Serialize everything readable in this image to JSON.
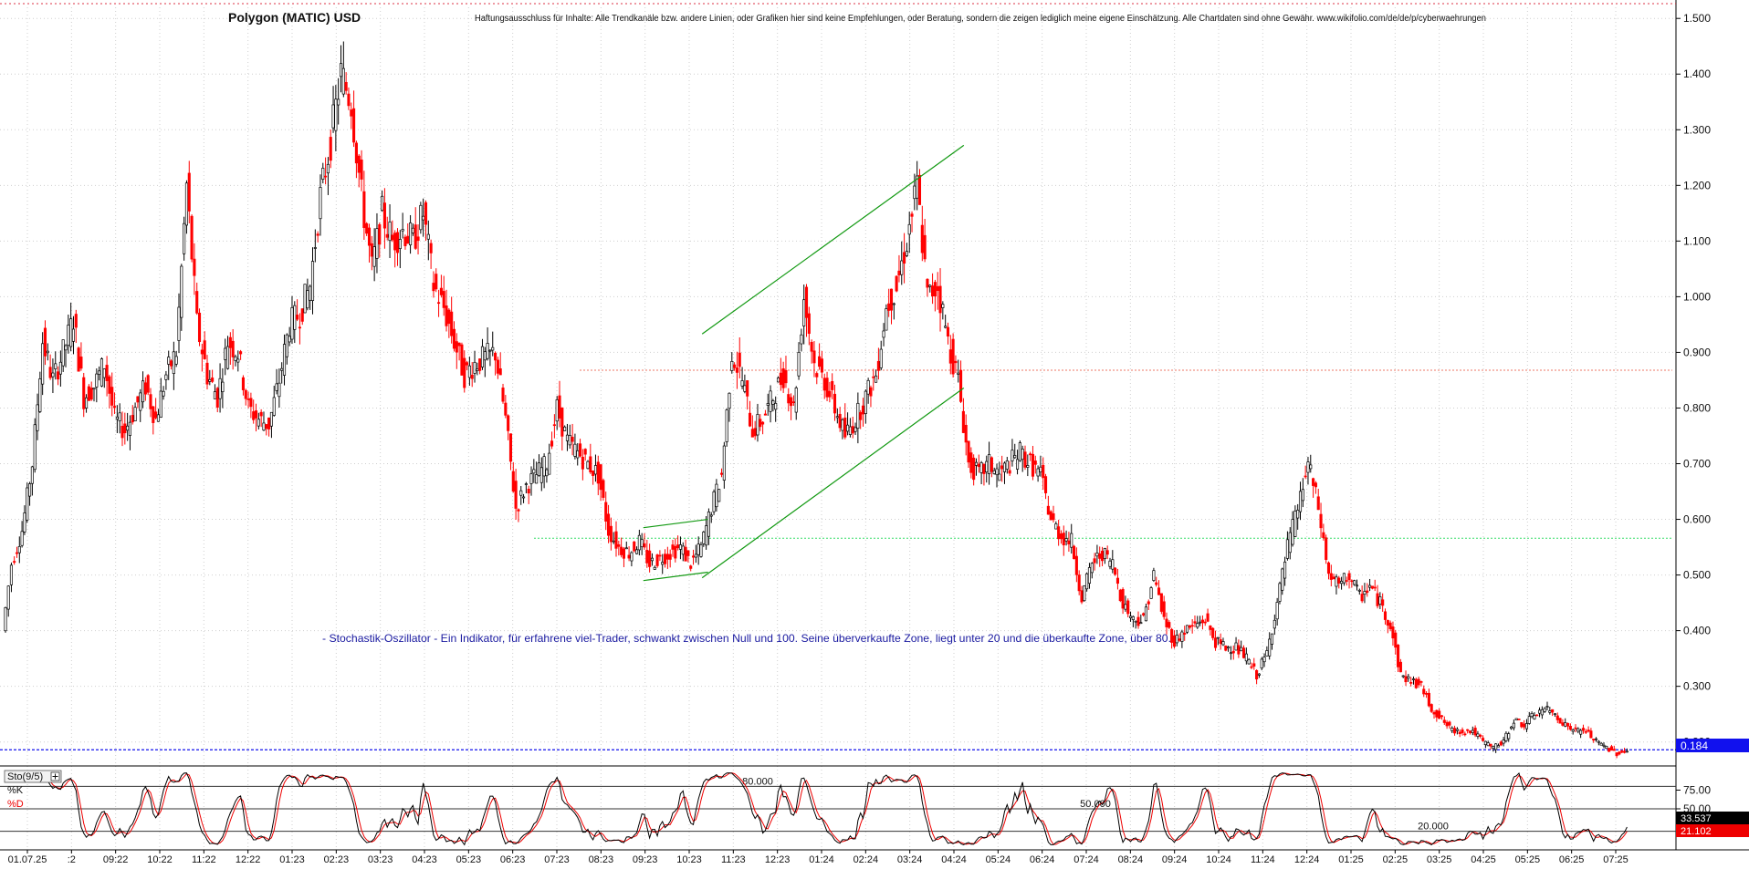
{
  "header": {
    "title": "Polygon (MATIC) USD",
    "disclaimer": "Haftungsausschluss für Inhalte: Alle Trendkanäle bzw. andere Linien, oder Grafiken hier sind keine Empfehlungen, oder Beratung, sondern die zeigen lediglich meine eigene Einschätzung. Alle Chartdaten sind ohne Gewähr. www.wikifolio.com/de/de/p/cyberwaehrungen"
  },
  "annotation": {
    "note": "- Stochastik-Oszillator - Ein Indikator, für erfahrene viel-Trader, schwankt zwischen Null und 100. Seine überverkaufte Zone, liegt unter 20 und die überkaufte Zone, über 80."
  },
  "colors": {
    "up": "#000000",
    "down": "#ff0000",
    "trendline": "#119911",
    "support_line": "#33dd66",
    "resistance_line": "#ee7766",
    "price_line": "#1111ee",
    "price_badge": "#1111ee",
    "k_badge": "#000000",
    "d_badge": "#ee0000"
  },
  "chart_data": [
    {
      "type": "candlestick",
      "x_range": [
        "2022-07-01",
        "2025-07-13"
      ],
      "ylim": [
        0.17,
        1.52
      ],
      "yticks": [
        "0.200",
        "0.300",
        "0.400",
        "0.500",
        "0.600",
        "0.700",
        "0.800",
        "0.900",
        "1.000",
        "1.100",
        "1.200",
        "1.300",
        "1.400",
        "1.500"
      ],
      "x_ticks": [
        "01.07.25",
        ":2",
        "09:22",
        "10:22",
        "11:22",
        "12:22",
        "01:23",
        "02:23",
        "03:23",
        "04:23",
        "05:23",
        "06:23",
        "07:23",
        "08:23",
        "09:23",
        "10:23",
        "11:23",
        "12:23",
        "01:24",
        "02:24",
        "03:24",
        "04:24",
        "05:24",
        "06:24",
        "07:24",
        "08:24",
        "09:24",
        "10:24",
        "11:24",
        "12:24",
        "01:25",
        "02:25",
        "03:25",
        "04:25",
        "05:25",
        "06:25",
        "07:25"
      ],
      "current_price": "0.184",
      "price_series": [
        {
          "date": "2022-07-01",
          "close": 0.4
        },
        {
          "date": "2022-07-07",
          "close": 0.52
        },
        {
          "date": "2022-07-14",
          "close": 0.58
        },
        {
          "date": "2022-07-21",
          "close": 0.7
        },
        {
          "date": "2022-07-28",
          "close": 0.92
        },
        {
          "date": "2022-08-04",
          "close": 0.85
        },
        {
          "date": "2022-08-11",
          "close": 0.9
        },
        {
          "date": "2022-08-18",
          "close": 0.96
        },
        {
          "date": "2022-08-25",
          "close": 0.82
        },
        {
          "date": "2022-09-01",
          "close": 0.84
        },
        {
          "date": "2022-09-08",
          "close": 0.88
        },
        {
          "date": "2022-09-15",
          "close": 0.78
        },
        {
          "date": "2022-09-22",
          "close": 0.76
        },
        {
          "date": "2022-09-29",
          "close": 0.8
        },
        {
          "date": "2022-10-06",
          "close": 0.84
        },
        {
          "date": "2022-10-13",
          "close": 0.78
        },
        {
          "date": "2022-10-20",
          "close": 0.86
        },
        {
          "date": "2022-10-27",
          "close": 0.9
        },
        {
          "date": "2022-11-03",
          "close": 1.2
        },
        {
          "date": "2022-11-10",
          "close": 0.95
        },
        {
          "date": "2022-11-17",
          "close": 0.86
        },
        {
          "date": "2022-11-24",
          "close": 0.82
        },
        {
          "date": "2022-12-01",
          "close": 0.92
        },
        {
          "date": "2022-12-08",
          "close": 0.9
        },
        {
          "date": "2022-12-15",
          "close": 0.8
        },
        {
          "date": "2022-12-22",
          "close": 0.78
        },
        {
          "date": "2022-12-29",
          "close": 0.77
        },
        {
          "date": "2023-01-05",
          "close": 0.85
        },
        {
          "date": "2023-01-12",
          "close": 0.95
        },
        {
          "date": "2023-01-19",
          "close": 0.97
        },
        {
          "date": "2023-01-26",
          "close": 1.02
        },
        {
          "date": "2023-02-02",
          "close": 1.18
        },
        {
          "date": "2023-02-09",
          "close": 1.28
        },
        {
          "date": "2023-02-16",
          "close": 1.4
        },
        {
          "date": "2023-02-23",
          "close": 1.35
        },
        {
          "date": "2023-03-02",
          "close": 1.18
        },
        {
          "date": "2023-03-09",
          "close": 1.05
        },
        {
          "date": "2023-03-16",
          "close": 1.15
        },
        {
          "date": "2023-03-23",
          "close": 1.1
        },
        {
          "date": "2023-03-30",
          "close": 1.12
        },
        {
          "date": "2023-04-06",
          "close": 1.1
        },
        {
          "date": "2023-04-13",
          "close": 1.15
        },
        {
          "date": "2023-04-20",
          "close": 1.02
        },
        {
          "date": "2023-04-27",
          "close": 0.98
        },
        {
          "date": "2023-05-04",
          "close": 0.92
        },
        {
          "date": "2023-05-11",
          "close": 0.86
        },
        {
          "date": "2023-05-18",
          "close": 0.88
        },
        {
          "date": "2023-05-25",
          "close": 0.89
        },
        {
          "date": "2023-06-01",
          "close": 0.9
        },
        {
          "date": "2023-06-08",
          "close": 0.78
        },
        {
          "date": "2023-06-15",
          "close": 0.62
        },
        {
          "date": "2023-06-22",
          "close": 0.66
        },
        {
          "date": "2023-06-29",
          "close": 0.68
        },
        {
          "date": "2023-07-06",
          "close": 0.7
        },
        {
          "date": "2023-07-13",
          "close": 0.8
        },
        {
          "date": "2023-07-20",
          "close": 0.74
        },
        {
          "date": "2023-07-27",
          "close": 0.72
        },
        {
          "date": "2023-08-03",
          "close": 0.7
        },
        {
          "date": "2023-08-10",
          "close": 0.68
        },
        {
          "date": "2023-08-17",
          "close": 0.58
        },
        {
          "date": "2023-08-24",
          "close": 0.55
        },
        {
          "date": "2023-08-31",
          "close": 0.54
        },
        {
          "date": "2023-09-07",
          "close": 0.56
        },
        {
          "date": "2023-09-14",
          "close": 0.52
        },
        {
          "date": "2023-09-21",
          "close": 0.53
        },
        {
          "date": "2023-09-28",
          "close": 0.54
        },
        {
          "date": "2023-10-05",
          "close": 0.55
        },
        {
          "date": "2023-10-12",
          "close": 0.52
        },
        {
          "date": "2023-10-19",
          "close": 0.55
        },
        {
          "date": "2023-10-26",
          "close": 0.62
        },
        {
          "date": "2023-11-02",
          "close": 0.68
        },
        {
          "date": "2023-11-09",
          "close": 0.9
        },
        {
          "date": "2023-11-16",
          "close": 0.85
        },
        {
          "date": "2023-11-23",
          "close": 0.76
        },
        {
          "date": "2023-11-30",
          "close": 0.78
        },
        {
          "date": "2023-12-07",
          "close": 0.82
        },
        {
          "date": "2023-12-14",
          "close": 0.86
        },
        {
          "date": "2023-12-21",
          "close": 0.8
        },
        {
          "date": "2023-12-28",
          "close": 1.0
        },
        {
          "date": "2024-01-04",
          "close": 0.88
        },
        {
          "date": "2024-01-11",
          "close": 0.85
        },
        {
          "date": "2024-01-18",
          "close": 0.8
        },
        {
          "date": "2024-01-25",
          "close": 0.75
        },
        {
          "date": "2024-02-01",
          "close": 0.78
        },
        {
          "date": "2024-02-08",
          "close": 0.82
        },
        {
          "date": "2024-02-15",
          "close": 0.86
        },
        {
          "date": "2024-02-22",
          "close": 0.98
        },
        {
          "date": "2024-02-29",
          "close": 1.02
        },
        {
          "date": "2024-03-07",
          "close": 1.1
        },
        {
          "date": "2024-03-14",
          "close": 1.2
        },
        {
          "date": "2024-03-21",
          "close": 1.0
        },
        {
          "date": "2024-03-28",
          "close": 1.02
        },
        {
          "date": "2024-04-04",
          "close": 0.92
        },
        {
          "date": "2024-04-11",
          "close": 0.85
        },
        {
          "date": "2024-04-18",
          "close": 0.7
        },
        {
          "date": "2024-04-25",
          "close": 0.68
        },
        {
          "date": "2024-05-02",
          "close": 0.7
        },
        {
          "date": "2024-05-09",
          "close": 0.68
        },
        {
          "date": "2024-05-16",
          "close": 0.7
        },
        {
          "date": "2024-05-23",
          "close": 0.72
        },
        {
          "date": "2024-05-30",
          "close": 0.7
        },
        {
          "date": "2024-06-06",
          "close": 0.68
        },
        {
          "date": "2024-06-13",
          "close": 0.6
        },
        {
          "date": "2024-06-20",
          "close": 0.57
        },
        {
          "date": "2024-06-27",
          "close": 0.56
        },
        {
          "date": "2024-07-04",
          "close": 0.46
        },
        {
          "date": "2024-07-11",
          "close": 0.52
        },
        {
          "date": "2024-07-18",
          "close": 0.54
        },
        {
          "date": "2024-07-25",
          "close": 0.52
        },
        {
          "date": "2024-08-01",
          "close": 0.45
        },
        {
          "date": "2024-08-08",
          "close": 0.42
        },
        {
          "date": "2024-08-15",
          "close": 0.42
        },
        {
          "date": "2024-08-22",
          "close": 0.5
        },
        {
          "date": "2024-08-29",
          "close": 0.42
        },
        {
          "date": "2024-09-05",
          "close": 0.38
        },
        {
          "date": "2024-09-12",
          "close": 0.4
        },
        {
          "date": "2024-09-19",
          "close": 0.41
        },
        {
          "date": "2024-09-26",
          "close": 0.42
        },
        {
          "date": "2024-10-03",
          "close": 0.38
        },
        {
          "date": "2024-10-10",
          "close": 0.37
        },
        {
          "date": "2024-10-17",
          "close": 0.37
        },
        {
          "date": "2024-10-24",
          "close": 0.35
        },
        {
          "date": "2024-10-31",
          "close": 0.32
        },
        {
          "date": "2024-11-07",
          "close": 0.36
        },
        {
          "date": "2024-11-14",
          "close": 0.45
        },
        {
          "date": "2024-11-21",
          "close": 0.55
        },
        {
          "date": "2024-11-28",
          "close": 0.62
        },
        {
          "date": "2024-12-05",
          "close": 0.7
        },
        {
          "date": "2024-12-12",
          "close": 0.62
        },
        {
          "date": "2024-12-19",
          "close": 0.5
        },
        {
          "date": "2024-12-26",
          "close": 0.48
        },
        {
          "date": "2025-01-02",
          "close": 0.5
        },
        {
          "date": "2025-01-09",
          "close": 0.46
        },
        {
          "date": "2025-01-16",
          "close": 0.48
        },
        {
          "date": "2025-01-23",
          "close": 0.45
        },
        {
          "date": "2025-01-30",
          "close": 0.41
        },
        {
          "date": "2025-02-06",
          "close": 0.32
        },
        {
          "date": "2025-02-13",
          "close": 0.31
        },
        {
          "date": "2025-02-20",
          "close": 0.3
        },
        {
          "date": "2025-02-27",
          "close": 0.26
        },
        {
          "date": "2025-03-06",
          "close": 0.24
        },
        {
          "date": "2025-03-13",
          "close": 0.22
        },
        {
          "date": "2025-03-20",
          "close": 0.22
        },
        {
          "date": "2025-03-27",
          "close": 0.22
        },
        {
          "date": "2025-04-03",
          "close": 0.2
        },
        {
          "date": "2025-04-10",
          "close": 0.19
        },
        {
          "date": "2025-04-17",
          "close": 0.2
        },
        {
          "date": "2025-04-24",
          "close": 0.24
        },
        {
          "date": "2025-05-01",
          "close": 0.23
        },
        {
          "date": "2025-05-08",
          "close": 0.25
        },
        {
          "date": "2025-05-15",
          "close": 0.26
        },
        {
          "date": "2025-05-22",
          "close": 0.25
        },
        {
          "date": "2025-05-29",
          "close": 0.23
        },
        {
          "date": "2025-06-05",
          "close": 0.22
        },
        {
          "date": "2025-06-12",
          "close": 0.22
        },
        {
          "date": "2025-06-19",
          "close": 0.2
        },
        {
          "date": "2025-06-26",
          "close": 0.19
        },
        {
          "date": "2025-07-03",
          "close": 0.18
        },
        {
          "date": "2025-07-10",
          "close": 0.184
        }
      ],
      "horizontal_lines": [
        {
          "y": 0.868,
          "color": "resistance_line"
        },
        {
          "y": 0.566,
          "color": "support_line"
        },
        {
          "y": 0.186,
          "color": "price_line"
        }
      ],
      "trendlines": [
        {
          "from": [
            "2023-09-08",
            0.585
          ],
          "to": [
            "2023-10-22",
            0.6
          ]
        },
        {
          "from": [
            "2023-09-08",
            0.49
          ],
          "to": [
            "2023-10-22",
            0.505
          ]
        },
        {
          "from": [
            "2023-10-18",
            0.933
          ],
          "to": [
            "2024-04-13",
            1.272
          ]
        },
        {
          "from": [
            "2023-10-18",
            0.495
          ],
          "to": [
            "2024-04-13",
            0.836
          ]
        }
      ]
    },
    {
      "type": "line",
      "label": "Sto(9/5)",
      "ylim": [
        0,
        100
      ],
      "yticks": [
        "75.00",
        "50.00",
        "25.00"
      ],
      "levels": [
        {
          "value": 80,
          "label": "80.000"
        },
        {
          "value": 50,
          "label": "50.000"
        },
        {
          "value": 20,
          "label": "20.000"
        }
      ],
      "series": [
        {
          "name": "%K",
          "color": "#000000",
          "last_value": "33.537"
        },
        {
          "name": "%D",
          "color": "#ee0000",
          "last_value": "21.102"
        }
      ]
    }
  ]
}
